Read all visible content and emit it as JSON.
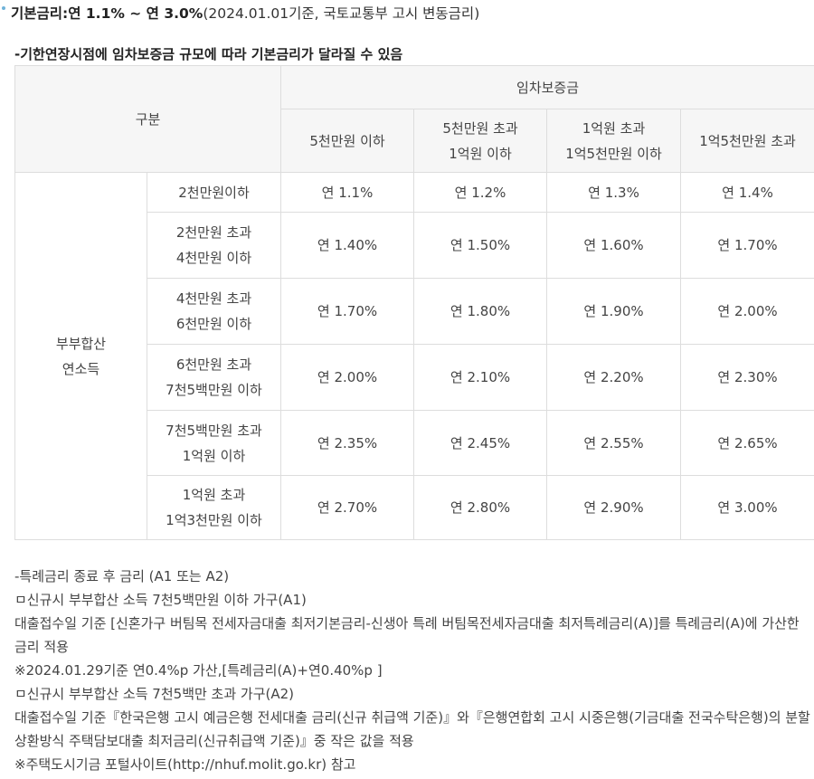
{
  "header": {
    "label": "기본금리:연 1.1% ~ 연 3.0%",
    "note": "(2024.01.01기준, 국토교통부 고시 변동금리)"
  },
  "subtitle": "-기한연장시점에 임차보증금 규모에 따라 기본금리가 달라질 수 있음",
  "table": {
    "corner": "구분",
    "deposit_header": "임차보증금",
    "deposit_columns": [
      [
        "5천만원 이하"
      ],
      [
        "5천만원 초과",
        "1억원 이하"
      ],
      [
        "1억원 초과",
        "1억5천만원 이하"
      ],
      [
        "1억5천만원 초과"
      ]
    ],
    "row_group": [
      "부부합산",
      "연소득"
    ],
    "rows": [
      {
        "income": [
          "2천만원이하"
        ],
        "rates": [
          "연 1.1%",
          "연 1.2%",
          "연 1.3%",
          "연 1.4%"
        ]
      },
      {
        "income": [
          "2천만원 초과",
          "4천만원 이하"
        ],
        "rates": [
          "연 1.40%",
          "연 1.50%",
          "연 1.60%",
          "연 1.70%"
        ]
      },
      {
        "income": [
          "4천만원 초과",
          "6천만원 이하"
        ],
        "rates": [
          "연 1.70%",
          "연 1.80%",
          "연 1.90%",
          "연 2.00%"
        ]
      },
      {
        "income": [
          "6천만원 초과",
          "7천5백만원 이하"
        ],
        "rates": [
          "연 2.00%",
          "연 2.10%",
          "연 2.20%",
          "연 2.30%"
        ]
      },
      {
        "income": [
          "7천5백만원 초과",
          "1억원 이하"
        ],
        "rates": [
          "연 2.35%",
          "연 2.45%",
          "연 2.55%",
          "연 2.65%"
        ]
      },
      {
        "income": [
          "1억원 초과",
          "1억3천만원 이하"
        ],
        "rates": [
          "연 2.70%",
          "연 2.80%",
          "연 2.90%",
          "연 3.00%"
        ]
      }
    ]
  },
  "notes": {
    "heading": "-특례금리 종료 후 금리 (A1 또는 A2)",
    "a1_title": "ㅁ신규시 부부합산 소득 7천5백만원 이하 가구(A1)",
    "a1_body": "대출접수일 기준 [신혼가구 버팀목 전세자금대출 최저기본금리-신생아 특례 버팀목전세자금대출 최저특례금리(A)]를 특례금리(A)에 가산한 금리 적용",
    "a1_extra": "※2024.01.29기준 연0.4%p 가산,[특례금리(A)+연0.40%p ]",
    "a2_title": "ㅁ신규시 부부합산 소득 7천5백만 초과 가구(A2)",
    "a2_body": "대출접수일 기준『한국은행 고시 예금은행 전세대출 금리(신규 취급액 기준)』와『은행연합회 고시 시중은행(기금대출 전국수탁은행)의 분할상환방식 주택담보대출 최저금리(신규취급액 기준)』중 작은 값을 적용",
    "footer": "※주택도시기금 포털사이트(http://nhuf.molit.go.kr) 참고"
  }
}
